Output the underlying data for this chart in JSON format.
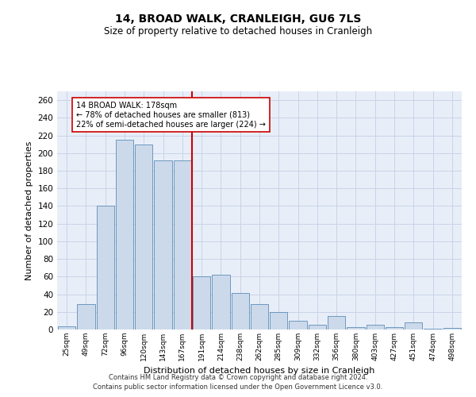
{
  "title": "14, BROAD WALK, CRANLEIGH, GU6 7LS",
  "subtitle": "Size of property relative to detached houses in Cranleigh",
  "xlabel": "Distribution of detached houses by size in Cranleigh",
  "ylabel": "Number of detached properties",
  "footnote1": "Contains HM Land Registry data © Crown copyright and database right 2024.",
  "footnote2": "Contains public sector information licensed under the Open Government Licence v3.0.",
  "bar_color": "#ccd9ea",
  "bar_edge_color": "#5b8db8",
  "property_line_color": "#cc0000",
  "annotation_line1": "14 BROAD WALK: 178sqm",
  "annotation_line2": "← 78% of detached houses are smaller (813)",
  "annotation_line3": "22% of semi-detached houses are larger (224) →",
  "annotation_box_color": "white",
  "annotation_box_edge_color": "#cc0000",
  "categories": [
    "25sqm",
    "49sqm",
    "72sqm",
    "96sqm",
    "120sqm",
    "143sqm",
    "167sqm",
    "191sqm",
    "214sqm",
    "238sqm",
    "262sqm",
    "285sqm",
    "309sqm",
    "332sqm",
    "356sqm",
    "380sqm",
    "403sqm",
    "427sqm",
    "451sqm",
    "474sqm",
    "498sqm"
  ],
  "values": [
    4,
    29,
    140,
    215,
    210,
    192,
    192,
    60,
    62,
    41,
    29,
    20,
    10,
    5,
    15,
    3,
    5,
    3,
    8,
    1,
    2
  ],
  "property_bar_idx": 7,
  "ylim": [
    0,
    270
  ],
  "yticks": [
    0,
    20,
    40,
    60,
    80,
    100,
    120,
    140,
    160,
    180,
    200,
    220,
    240,
    260
  ],
  "grid_color": "#c8d4e8",
  "background_color": "#e8eef8"
}
